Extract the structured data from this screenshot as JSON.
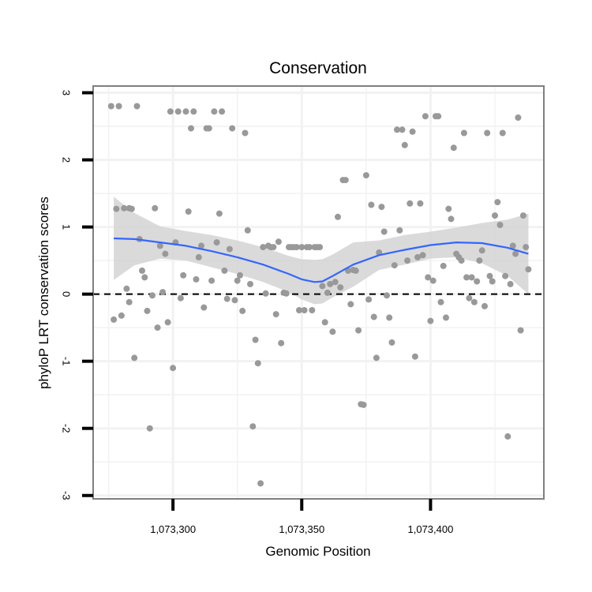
{
  "chart_data": {
    "type": "scatter",
    "title": "Conservation",
    "xlabel": "Genomic Position",
    "ylabel": "phyloP LRT conservation scores",
    "xlim": [
      1073269,
      1073444
    ],
    "ylim": [
      -3.05,
      3.1
    ],
    "xticks": [
      1073300,
      1073350,
      1073400
    ],
    "xtick_labels": [
      "1,073,300",
      "1,073,350",
      "1,073,400"
    ],
    "yticks": [
      -3,
      -2,
      -1,
      0,
      1,
      2,
      3
    ],
    "ytick_labels": [
      "-3",
      "-2",
      "-1",
      "0",
      "1",
      "2",
      "3"
    ],
    "x_minor_breaks": [
      1073275,
      1073325,
      1073375,
      1073425
    ],
    "y_minor_breaks": [
      -2.5,
      -1.5,
      -0.5,
      0.5,
      1.5,
      2.5
    ],
    "grid": true,
    "reference_line": {
      "y": 0,
      "style": "dashed"
    },
    "colors": {
      "points": "#999999",
      "smooth_line": "#3366ff",
      "confidence_band": "#d3d3d3",
      "grid": "#f2f2f2",
      "panel_border": "#7f7f7f",
      "reference_line": "#000000"
    },
    "series": [
      {
        "name": "phyloP scores",
        "points": [
          [
            1073276,
            2.8
          ],
          [
            1073279,
            2.8
          ],
          [
            1073277,
            -0.38
          ],
          [
            1073278,
            1.27
          ],
          [
            1073280,
            -0.32
          ],
          [
            1073281,
            1.28
          ],
          [
            1073282,
            0.08
          ],
          [
            1073283,
            -0.12
          ],
          [
            1073283,
            1.28
          ],
          [
            1073284,
            1.27
          ],
          [
            1073285,
            -0.95
          ],
          [
            1073286,
            2.8
          ],
          [
            1073287,
            0.82
          ],
          [
            1073288,
            0.35
          ],
          [
            1073289,
            0.25
          ],
          [
            1073290,
            -0.25
          ],
          [
            1073291,
            -2.0
          ],
          [
            1073292,
            -0.02
          ],
          [
            1073293,
            1.28
          ],
          [
            1073294,
            -0.5
          ],
          [
            1073295,
            0.72
          ],
          [
            1073296,
            0.03
          ],
          [
            1073297,
            0.6
          ],
          [
            1073298,
            -0.42
          ],
          [
            1073299,
            2.72
          ],
          [
            1073300,
            -1.1
          ],
          [
            1073301,
            0.77
          ],
          [
            1073302,
            2.72
          ],
          [
            1073303,
            -0.06
          ],
          [
            1073304,
            0.28
          ],
          [
            1073305,
            2.72
          ],
          [
            1073306,
            1.23
          ],
          [
            1073307,
            2.47
          ],
          [
            1073308,
            2.72
          ],
          [
            1073309,
            0.22
          ],
          [
            1073310,
            0.55
          ],
          [
            1073311,
            0.72
          ],
          [
            1073312,
            -0.2
          ],
          [
            1073313,
            2.47
          ],
          [
            1073314,
            2.47
          ],
          [
            1073315,
            0.2
          ],
          [
            1073316,
            2.72
          ],
          [
            1073317,
            0.77
          ],
          [
            1073318,
            1.2
          ],
          [
            1073319,
            2.72
          ],
          [
            1073320,
            0.35
          ],
          [
            1073321,
            -0.07
          ],
          [
            1073322,
            0.67
          ],
          [
            1073323,
            2.47
          ],
          [
            1073324,
            -0.09
          ],
          [
            1073325,
            0.2
          ],
          [
            1073326,
            0.28
          ],
          [
            1073327,
            -0.25
          ],
          [
            1073328,
            2.4
          ],
          [
            1073329,
            0.95
          ],
          [
            1073330,
            0.15
          ],
          [
            1073331,
            -1.97
          ],
          [
            1073332,
            -0.68
          ],
          [
            1073333,
            -1.03
          ],
          [
            1073334,
            -2.82
          ],
          [
            1073335,
            0.7
          ],
          [
            1073336,
            0.01
          ],
          [
            1073337,
            0.72
          ],
          [
            1073338,
            0.7
          ],
          [
            1073339,
            0.7
          ],
          [
            1073340,
            -0.3
          ],
          [
            1073341,
            0.78
          ],
          [
            1073342,
            -0.73
          ],
          [
            1073343,
            0.02
          ],
          [
            1073344,
            0.01
          ],
          [
            1073345,
            0.7
          ],
          [
            1073346,
            0.7
          ],
          [
            1073347,
            0.7
          ],
          [
            1073348,
            0.7
          ],
          [
            1073349,
            -0.24
          ],
          [
            1073350,
            0.7
          ],
          [
            1073351,
            -0.24
          ],
          [
            1073352,
            0.7
          ],
          [
            1073353,
            0.7
          ],
          [
            1073354,
            -0.24
          ],
          [
            1073355,
            0.7
          ],
          [
            1073356,
            0.7
          ],
          [
            1073357,
            0.7
          ],
          [
            1073358,
            0.12
          ],
          [
            1073359,
            -0.42
          ],
          [
            1073360,
            0.02
          ],
          [
            1073361,
            0.15
          ],
          [
            1073362,
            -0.56
          ],
          [
            1073363,
            0.18
          ],
          [
            1073364,
            1.15
          ],
          [
            1073365,
            0.1
          ],
          [
            1073366,
            1.7
          ],
          [
            1073367,
            1.7
          ],
          [
            1073368,
            0.35
          ],
          [
            1073369,
            -0.15
          ],
          [
            1073370,
            0.36
          ],
          [
            1073371,
            0.35
          ],
          [
            1073372,
            -0.54
          ],
          [
            1073373,
            -1.64
          ],
          [
            1073374,
            -1.65
          ],
          [
            1073375,
            1.77
          ],
          [
            1073376,
            -0.08
          ],
          [
            1073377,
            1.33
          ],
          [
            1073378,
            -0.34
          ],
          [
            1073379,
            -0.95
          ],
          [
            1073380,
            0.62
          ],
          [
            1073381,
            1.3
          ],
          [
            1073382,
            0.93
          ],
          [
            1073383,
            -0.02
          ],
          [
            1073384,
            -0.35
          ],
          [
            1073385,
            -0.72
          ],
          [
            1073386,
            0.43
          ],
          [
            1073387,
            2.45
          ],
          [
            1073388,
            0.95
          ],
          [
            1073389,
            2.45
          ],
          [
            1073390,
            2.22
          ],
          [
            1073391,
            0.5
          ],
          [
            1073392,
            1.35
          ],
          [
            1073393,
            2.42
          ],
          [
            1073394,
            -0.93
          ],
          [
            1073395,
            0.55
          ],
          [
            1073396,
            1.35
          ],
          [
            1073397,
            0.58
          ],
          [
            1073398,
            2.65
          ],
          [
            1073399,
            0.25
          ],
          [
            1073400,
            -0.4
          ],
          [
            1073401,
            0.2
          ],
          [
            1073402,
            2.65
          ],
          [
            1073403,
            2.65
          ],
          [
            1073404,
            -0.12
          ],
          [
            1073405,
            0.42
          ],
          [
            1073406,
            -0.35
          ],
          [
            1073407,
            1.27
          ],
          [
            1073408,
            1.12
          ],
          [
            1073409,
            2.18
          ],
          [
            1073410,
            0.6
          ],
          [
            1073411,
            0.55
          ],
          [
            1073412,
            0.5
          ],
          [
            1073413,
            2.4
          ],
          [
            1073414,
            0.25
          ],
          [
            1073415,
            -0.06
          ],
          [
            1073416,
            0.25
          ],
          [
            1073417,
            -0.12
          ],
          [
            1073418,
            0.19
          ],
          [
            1073419,
            0.5
          ],
          [
            1073420,
            0.65
          ],
          [
            1073421,
            -0.18
          ],
          [
            1073422,
            2.4
          ],
          [
            1073423,
            0.27
          ],
          [
            1073424,
            0.19
          ],
          [
            1073425,
            1.17
          ],
          [
            1073426,
            1.37
          ],
          [
            1073427,
            1.03
          ],
          [
            1073428,
            2.4
          ],
          [
            1073429,
            0.27
          ],
          [
            1073430,
            -2.12
          ],
          [
            1073431,
            0.15
          ],
          [
            1073432,
            0.72
          ],
          [
            1073433,
            0.6
          ],
          [
            1073434,
            2.63
          ],
          [
            1073435,
            -0.54
          ],
          [
            1073436,
            1.17
          ],
          [
            1073437,
            0.7
          ],
          [
            1073438,
            0.37
          ]
        ]
      },
      {
        "name": "loess smooth",
        "x": [
          1073277,
          1073285,
          1073295,
          1073305,
          1073315,
          1073325,
          1073335,
          1073345,
          1073350,
          1073355,
          1073358,
          1073362,
          1073370,
          1073380,
          1073390,
          1073400,
          1073410,
          1073420,
          1073430,
          1073438
        ],
        "y": [
          0.83,
          0.82,
          0.77,
          0.72,
          0.64,
          0.55,
          0.44,
          0.3,
          0.22,
          0.18,
          0.19,
          0.27,
          0.44,
          0.58,
          0.66,
          0.73,
          0.77,
          0.76,
          0.69,
          0.6
        ],
        "lower": [
          0.21,
          0.43,
          0.53,
          0.5,
          0.4,
          0.3,
          0.18,
          0.03,
          -0.08,
          -0.15,
          -0.14,
          -0.05,
          0.11,
          0.36,
          0.44,
          0.53,
          0.55,
          0.46,
          0.27,
          0.0
        ],
        "upper": [
          1.45,
          1.21,
          1.01,
          0.94,
          0.88,
          0.8,
          0.7,
          0.57,
          0.52,
          0.51,
          0.52,
          0.59,
          0.77,
          0.8,
          0.88,
          0.93,
          0.99,
          1.06,
          1.11,
          1.2
        ]
      }
    ]
  }
}
